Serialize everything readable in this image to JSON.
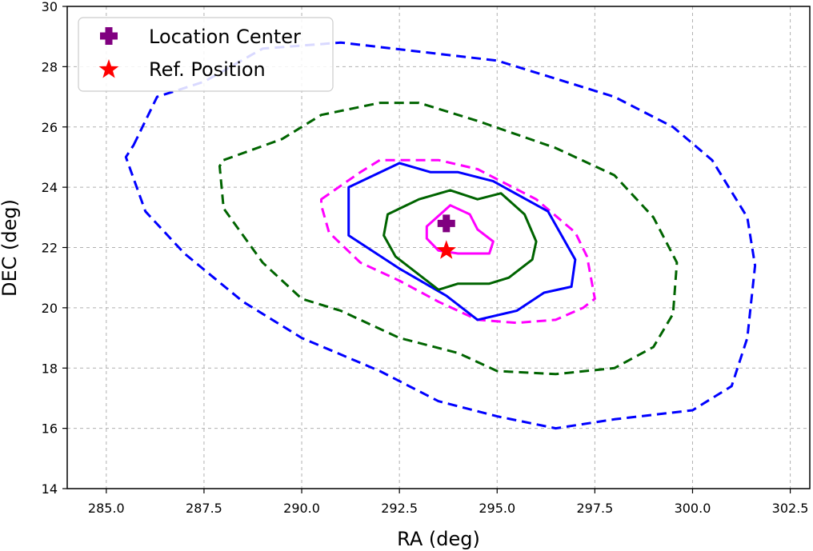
{
  "chart_data": {
    "type": "contour",
    "title": "",
    "xlabel": "RA (deg)",
    "ylabel": "DEC (deg)",
    "xlim": [
      284.0,
      303.0
    ],
    "ylim": [
      14,
      30
    ],
    "grid": true,
    "xticks": [
      285.0,
      287.5,
      290.0,
      292.5,
      295.0,
      297.5,
      300.0,
      302.5
    ],
    "xtick_labels": [
      "285.0",
      "287.5",
      "290.0",
      "292.5",
      "295.0",
      "297.5",
      "300.0",
      "302.5"
    ],
    "yticks": [
      14,
      16,
      18,
      20,
      22,
      24,
      26,
      28,
      30
    ],
    "ytick_labels": [
      "14",
      "16",
      "18",
      "20",
      "22",
      "24",
      "26",
      "28",
      "30"
    ],
    "legend": {
      "position": "top-left",
      "entries": [
        {
          "label": "Location Center",
          "marker": "plus",
          "color": "#800080"
        },
        {
          "label": "Ref. Position",
          "marker": "star",
          "color": "#ff0000"
        }
      ]
    },
    "points": [
      {
        "name": "Location Center",
        "ra": 293.7,
        "dec": 22.8,
        "marker": "plus",
        "color": "#800080"
      },
      {
        "name": "Ref. Position",
        "ra": 293.7,
        "dec": 21.9,
        "marker": "star",
        "color": "#ff0000"
      }
    ],
    "contours": [
      {
        "color": "#0000ff",
        "style": "dashed",
        "points": [
          [
            285.7,
            25.4
          ],
          [
            286.3,
            27.0
          ],
          [
            287.5,
            27.5
          ],
          [
            289.0,
            28.6
          ],
          [
            291.0,
            28.8
          ],
          [
            293.0,
            28.5
          ],
          [
            295.0,
            28.2
          ],
          [
            296.5,
            27.6
          ],
          [
            298.0,
            27.0
          ],
          [
            299.5,
            26.0
          ],
          [
            300.5,
            24.9
          ],
          [
            301.4,
            23.0
          ],
          [
            301.6,
            21.4
          ],
          [
            301.4,
            19.0
          ],
          [
            301.0,
            17.4
          ],
          [
            300.0,
            16.6
          ],
          [
            298.0,
            16.3
          ],
          [
            296.5,
            16.0
          ],
          [
            295.0,
            16.4
          ],
          [
            293.5,
            16.9
          ],
          [
            292.0,
            17.9
          ],
          [
            290.0,
            19.0
          ],
          [
            288.5,
            20.2
          ],
          [
            287.0,
            21.8
          ],
          [
            286.0,
            23.2
          ],
          [
            285.5,
            25.0
          ]
        ]
      },
      {
        "color": "#006400",
        "style": "dashed",
        "points": [
          [
            288.0,
            24.9
          ],
          [
            289.5,
            25.6
          ],
          [
            290.5,
            26.4
          ],
          [
            292.0,
            26.8
          ],
          [
            293.0,
            26.8
          ],
          [
            294.5,
            26.2
          ],
          [
            296.5,
            25.3
          ],
          [
            298.0,
            24.4
          ],
          [
            299.0,
            23.0
          ],
          [
            299.6,
            21.5
          ],
          [
            299.5,
            19.8
          ],
          [
            299.0,
            18.7
          ],
          [
            298.0,
            18.0
          ],
          [
            296.5,
            17.8
          ],
          [
            295.0,
            17.9
          ],
          [
            294.0,
            18.5
          ],
          [
            292.5,
            19.0
          ],
          [
            291.0,
            19.9
          ],
          [
            290.0,
            20.3
          ],
          [
            289.0,
            21.5
          ],
          [
            288.0,
            23.3
          ],
          [
            287.9,
            24.7
          ]
        ]
      },
      {
        "color": "#ff00ff",
        "style": "dashed",
        "points": [
          [
            290.5,
            23.6
          ],
          [
            291.5,
            24.5
          ],
          [
            292.0,
            24.9
          ],
          [
            293.5,
            24.9
          ],
          [
            294.5,
            24.6
          ],
          [
            296.0,
            23.6
          ],
          [
            297.0,
            22.5
          ],
          [
            297.3,
            21.7
          ],
          [
            297.5,
            20.3
          ],
          [
            297.2,
            20.0
          ],
          [
            296.5,
            19.6
          ],
          [
            295.5,
            19.5
          ],
          [
            294.5,
            19.6
          ],
          [
            293.5,
            20.2
          ],
          [
            292.5,
            20.9
          ],
          [
            291.5,
            21.5
          ],
          [
            290.7,
            22.5
          ],
          [
            290.5,
            23.4
          ]
        ]
      },
      {
        "color": "#0000ff",
        "style": "solid",
        "points": [
          [
            291.2,
            24.0
          ],
          [
            292.5,
            24.8
          ],
          [
            293.3,
            24.5
          ],
          [
            294.0,
            24.5
          ],
          [
            294.9,
            24.2
          ],
          [
            296.3,
            23.2
          ],
          [
            297.0,
            21.6
          ],
          [
            296.9,
            20.7
          ],
          [
            296.2,
            20.5
          ],
          [
            295.5,
            19.9
          ],
          [
            294.5,
            19.6
          ],
          [
            293.7,
            20.4
          ],
          [
            292.5,
            21.3
          ],
          [
            291.2,
            22.4
          ]
        ]
      },
      {
        "color": "#006400",
        "style": "solid",
        "points": [
          [
            292.2,
            23.1
          ],
          [
            293.0,
            23.6
          ],
          [
            293.8,
            23.9
          ],
          [
            294.5,
            23.6
          ],
          [
            295.1,
            23.8
          ],
          [
            295.7,
            23.1
          ],
          [
            296.0,
            22.2
          ],
          [
            295.9,
            21.6
          ],
          [
            295.3,
            21.0
          ],
          [
            294.8,
            20.8
          ],
          [
            294.0,
            20.8
          ],
          [
            293.5,
            20.6
          ],
          [
            292.4,
            21.7
          ],
          [
            292.1,
            22.4
          ]
        ]
      },
      {
        "color": "#ff00ff",
        "style": "solid",
        "points": [
          [
            293.2,
            22.7
          ],
          [
            293.8,
            23.4
          ],
          [
            294.3,
            23.1
          ],
          [
            294.5,
            22.6
          ],
          [
            294.9,
            22.2
          ],
          [
            294.8,
            21.8
          ],
          [
            294.0,
            21.8
          ],
          [
            293.5,
            21.9
          ],
          [
            293.2,
            22.3
          ]
        ]
      }
    ]
  }
}
